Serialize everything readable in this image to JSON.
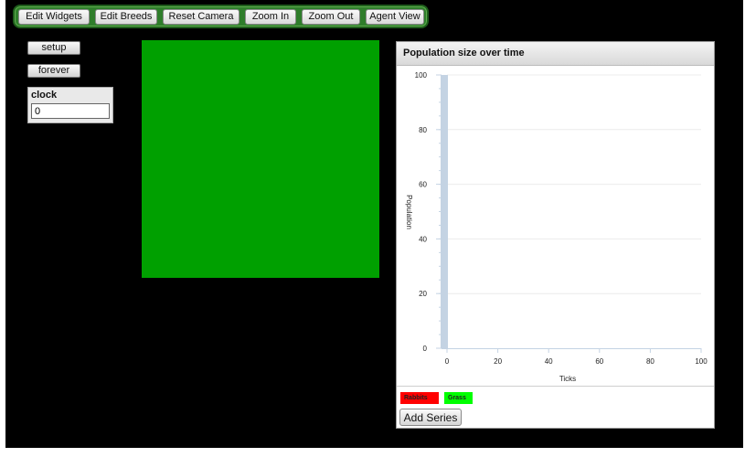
{
  "toolbar": {
    "buttons": [
      {
        "label": "Edit Widgets"
      },
      {
        "label": "Edit Breeds"
      },
      {
        "label": "Reset Camera"
      },
      {
        "label": "Zoom In"
      },
      {
        "label": "Zoom Out"
      },
      {
        "label": "Agent View"
      }
    ]
  },
  "widgets": {
    "setup_label": "setup",
    "forever_label": "forever",
    "clock": {
      "label": "clock",
      "value": "0"
    }
  },
  "world": {
    "color": "#00a000"
  },
  "plot": {
    "title": "Population size over time",
    "add_series_label": "Add Series",
    "legend": [
      {
        "name": "Rabbits",
        "color": "#ff0000"
      },
      {
        "name": "Grass",
        "color": "#00ff00"
      }
    ]
  },
  "chart_data": {
    "type": "bar",
    "title": "Population size over time",
    "xlabel": "Ticks",
    "ylabel": "Population",
    "xlim": [
      0,
      100
    ],
    "ylim": [
      0,
      100
    ],
    "xticks": [
      0,
      20,
      40,
      60,
      80,
      100
    ],
    "yticks": [
      0,
      20,
      40,
      60,
      80,
      100
    ],
    "grid": true,
    "series": [
      {
        "name": "Rabbits",
        "color": "#ff0000",
        "values": []
      },
      {
        "name": "Grass",
        "color": "#00ff00",
        "values": []
      }
    ],
    "highlight_band": {
      "x": [
        0,
        0.5
      ],
      "color": "#c4d3e3"
    }
  }
}
